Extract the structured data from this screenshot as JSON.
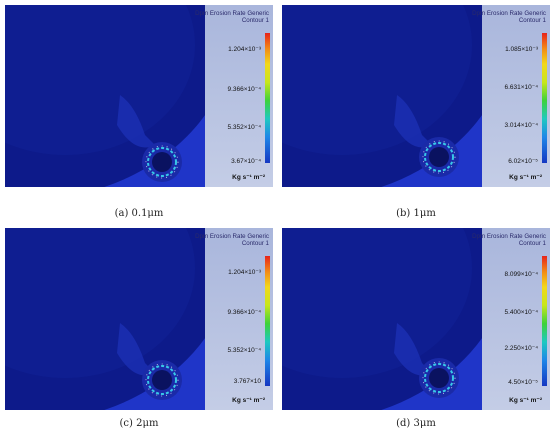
{
  "legend_title_1": "Dpm Erosion Rate Generic",
  "legend_title_2": "Contour 1",
  "unit": "Kg s⁻¹ m⁻²",
  "panels": [
    {
      "caption": "(a) 0.1μm",
      "ticks": [
        "1.204×10⁻³",
        "9.366×10⁻⁴",
        "5.352×10⁻⁴",
        "3.67×10⁻⁴"
      ]
    },
    {
      "caption": "(b) 1μm",
      "ticks": [
        "1.085×10⁻³",
        "6.631×10⁻⁴",
        "3.014×10⁻⁴",
        "6.02×10⁻⁵"
      ]
    },
    {
      "caption": "(c) 2μm",
      "ticks": [
        "1.204×10⁻³",
        "9.366×10⁻⁴",
        "5.352×10⁻⁴",
        "3.767×10"
      ]
    },
    {
      "caption": "(d) 3μm",
      "ticks": [
        "8.099×10⁻⁴",
        "5.400×10⁻⁴",
        "2.250×10⁻⁴",
        "4.50×10⁻⁵"
      ]
    }
  ]
}
